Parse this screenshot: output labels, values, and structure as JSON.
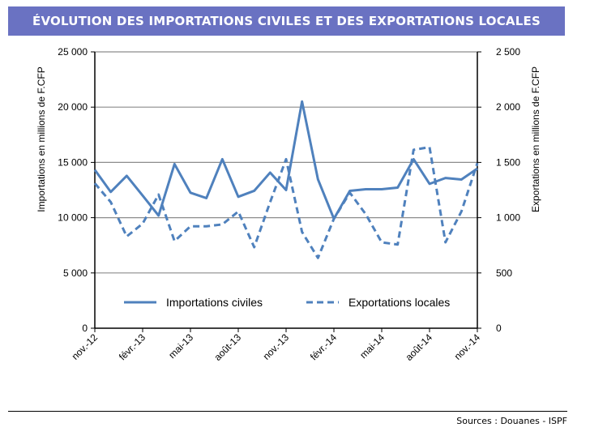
{
  "chart_data": {
    "type": "line",
    "title": "ÉVOLUTION DES IMPORTATIONS CIVILES ET DES EXPORTATIONS LOCALES",
    "ylabel": "Importations en millions de F.CFP",
    "y2label": "Exportations en millions de F.CFP",
    "ylim": [
      0,
      25000
    ],
    "y2lim": [
      0,
      2500
    ],
    "yticks": [
      "0",
      "5 000",
      "10 000",
      "15 000",
      "20 000",
      "25 000"
    ],
    "y2ticks": [
      "0",
      "500",
      "1 000",
      "1 500",
      "2 000",
      "2 500"
    ],
    "x": [
      "nov.-12",
      "déc.-12",
      "janv.-13",
      "févr.-13",
      "mars-13",
      "avr.-13",
      "mai-13",
      "juin-13",
      "juil.-13",
      "août-13",
      "sept.-13",
      "oct.-13",
      "nov.-13",
      "déc.-13",
      "janv.-14",
      "févr.-14",
      "mars-14",
      "avr.-14",
      "mai-14",
      "juin-14",
      "juil.-14",
      "août-14",
      "sept.-14",
      "oct.-14",
      "nov.-14"
    ],
    "xticklabels": [
      "nov.-12",
      "févr.-13",
      "mai-13",
      "août-13",
      "nov.-13",
      "févr.-14",
      "mai-14",
      "août-14",
      "nov.-14"
    ],
    "grid": true,
    "legend": "inside-bottom",
    "series": [
      {
        "name": "Importations civiles",
        "axis": "left",
        "style": "solid",
        "color": "#4f81bd",
        "values": [
          14320,
          12330,
          13790,
          12000,
          10190,
          14850,
          12260,
          11770,
          15290,
          11890,
          12430,
          14080,
          12500,
          20510,
          13470,
          9900,
          12430,
          12570,
          12570,
          12720,
          15290,
          13060,
          13590,
          13450,
          14440
        ]
      },
      {
        "name": "Exportations locales",
        "axis": "right",
        "style": "dashed",
        "color": "#4f81bd",
        "values": [
          1311,
          1141,
          830,
          946,
          1209,
          788,
          922,
          922,
          939,
          1056,
          733,
          1141,
          1529,
          871,
          636,
          990,
          1226,
          1031,
          777,
          757,
          1614,
          1638,
          777,
          1056,
          1493
        ]
      }
    ]
  },
  "footer": {
    "sources": "Sources : Douanes - ISPF"
  }
}
